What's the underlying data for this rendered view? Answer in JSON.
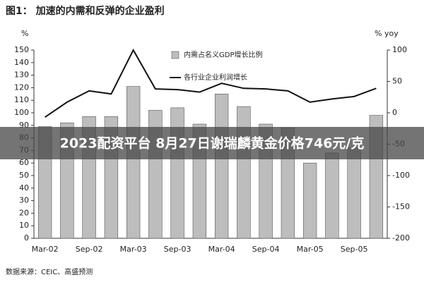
{
  "chart_data": {
    "type": "bar",
    "title": "图1： 加速的内需和反弹的企业盈利",
    "ylabel": "%",
    "y2label": "% yoy",
    "categories": [
      "Mar-02",
      null,
      "Sep-02",
      null,
      "Mar-03",
      null,
      "Sep-03",
      null,
      "Mar-04",
      null,
      "Sep-04",
      null,
      "Mar-05",
      null,
      "Sep-05",
      null
    ],
    "series": [
      {
        "name": "内需占名义GDP增长比例",
        "type": "bar",
        "color": "#bdbdbd",
        "values": [
          89,
          92,
          97,
          97,
          121,
          102,
          104,
          91,
          115,
          105,
          91,
          88,
          60,
          68,
          72,
          98
        ]
      },
      {
        "name": "各行业企业利润增长",
        "type": "line",
        "axis": "y2",
        "color": "#111111",
        "values": [
          -7,
          17,
          35,
          30,
          100,
          38,
          37,
          33,
          47,
          39,
          38,
          35,
          17,
          22,
          26,
          39
        ]
      }
    ],
    "ylim": [
      0,
      150
    ],
    "yticks": [
      0,
      10,
      20,
      30,
      40,
      50,
      60,
      70,
      80,
      90,
      100,
      110,
      120,
      130,
      140,
      150
    ],
    "y2lim": [
      -200,
      100
    ],
    "y2ticks": [
      -200,
      -150,
      -100,
      -50,
      0,
      50,
      100
    ],
    "legend": "top",
    "source": "数据来源：CEIC、高盛预测"
  },
  "banner": "2023配资平台 8月27日谢瑞麟黄金价格746元/克"
}
